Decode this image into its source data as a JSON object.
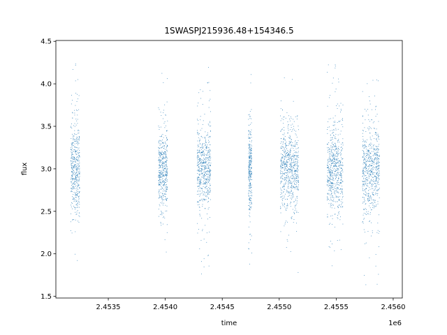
{
  "chart_data": {
    "type": "scatter",
    "title": "1SWASPJ215936.48+154346.5",
    "xlabel": "time",
    "ylabel": "flux",
    "x_offset_label": "1e6",
    "xlim": [
      2453040,
      2456080
    ],
    "ylim": [
      1.48,
      4.51
    ],
    "x_ticks": [
      {
        "value": 2453500,
        "label": "2.4535"
      },
      {
        "value": 2454000,
        "label": "2.4540"
      },
      {
        "value": 2454500,
        "label": "2.4545"
      },
      {
        "value": 2455000,
        "label": "2.4550"
      },
      {
        "value": 2455500,
        "label": "2.4555"
      },
      {
        "value": 2456000,
        "label": "2.4560"
      }
    ],
    "y_ticks": [
      {
        "value": 1.5,
        "label": "1.5"
      },
      {
        "value": 2.0,
        "label": "2.0"
      },
      {
        "value": 2.5,
        "label": "2.5"
      },
      {
        "value": 3.0,
        "label": "3.0"
      },
      {
        "value": 3.5,
        "label": "3.5"
      },
      {
        "value": 4.0,
        "label": "4.0"
      },
      {
        "value": 4.5,
        "label": "4.5"
      }
    ],
    "grid": false,
    "marker_color": "#1f77b4",
    "series": [
      {
        "x_range": [
          2453170,
          2453250
        ],
        "y_center": 3.0,
        "y_range": [
          1.65,
          4.38
        ]
      },
      {
        "x_range": [
          2453940,
          2454020
        ],
        "y_center": 3.0,
        "y_range": [
          1.7,
          4.3
        ]
      },
      {
        "x_range": [
          2454280,
          2454400
        ],
        "y_center": 3.0,
        "y_range": [
          1.75,
          4.25
        ]
      },
      {
        "x_range": [
          2454730,
          2454760
        ],
        "y_center": 3.0,
        "y_range": [
          1.65,
          4.35
        ]
      },
      {
        "x_range": [
          2455010,
          2455170
        ],
        "y_center": 3.0,
        "y_range": [
          1.68,
          4.3
        ]
      },
      {
        "x_range": [
          2455420,
          2455560
        ],
        "y_center": 3.0,
        "y_range": [
          1.65,
          4.36
        ]
      },
      {
        "x_range": [
          2455730,
          2455880
        ],
        "y_center": 3.0,
        "y_range": [
          1.62,
          4.37
        ]
      }
    ]
  }
}
